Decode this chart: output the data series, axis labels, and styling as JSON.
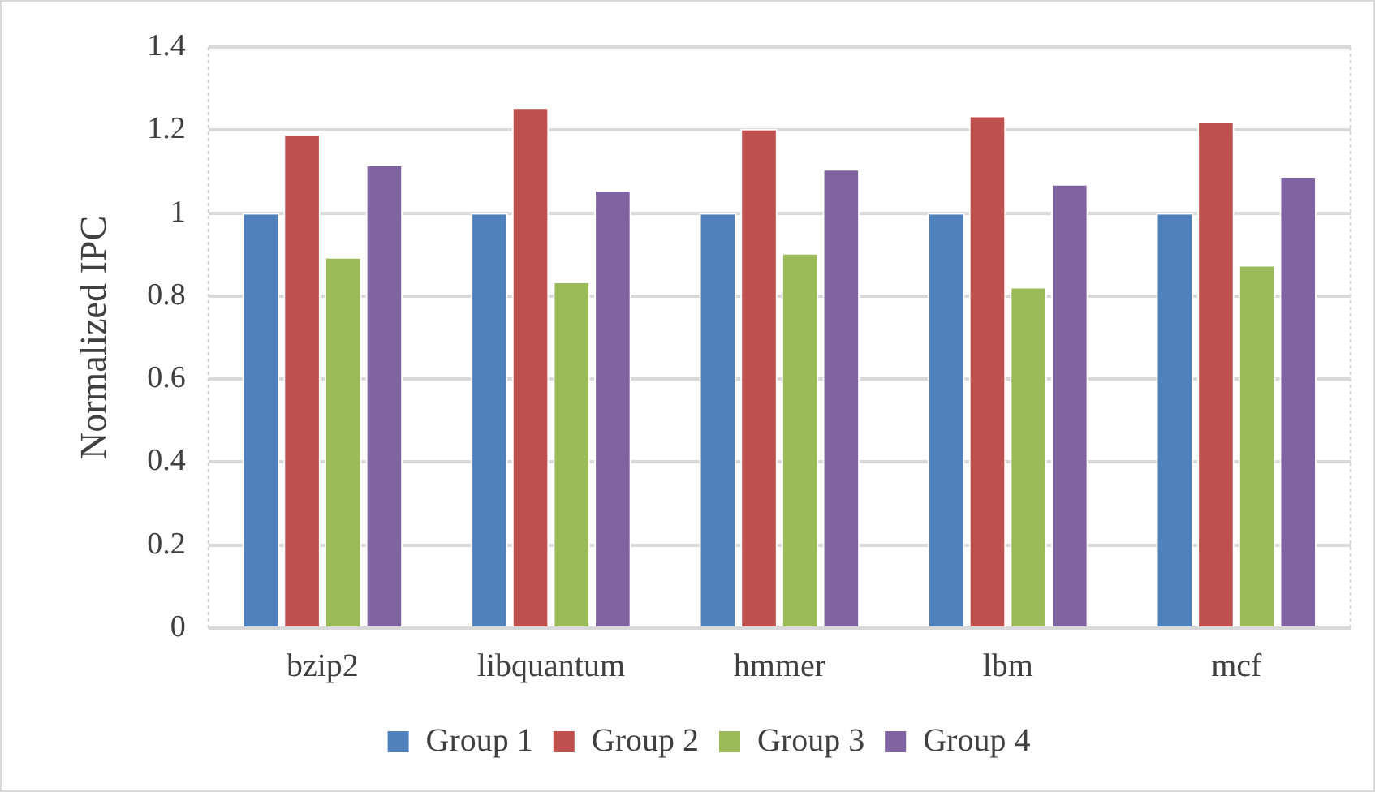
{
  "chart_data": {
    "type": "bar",
    "ylabel": "Normalized IPC",
    "categories": [
      "bzip2",
      "libquantum",
      "hmmer",
      "lbm",
      "mcf"
    ],
    "series": [
      {
        "name": "Group 1",
        "color": "#4f81bd",
        "values": [
          1,
          1,
          1,
          1,
          1
        ]
      },
      {
        "name": "Group 2",
        "color": "#c0504d",
        "values": [
          1.19,
          1.255,
          1.203,
          1.235,
          1.22
        ]
      },
      {
        "name": "Group 3",
        "color": "#9bbb59",
        "values": [
          0.894,
          0.835,
          0.904,
          0.822,
          0.875
        ]
      },
      {
        "name": "Group 4",
        "color": "#8064a2",
        "values": [
          1.117,
          1.056,
          1.106,
          1.07,
          1.089
        ]
      }
    ],
    "ylim": [
      0,
      1.4
    ],
    "yticks": [
      0,
      0.2,
      0.4,
      0.6,
      0.8,
      1,
      1.2,
      1.4
    ],
    "grid": "y",
    "legend": "bottom"
  }
}
